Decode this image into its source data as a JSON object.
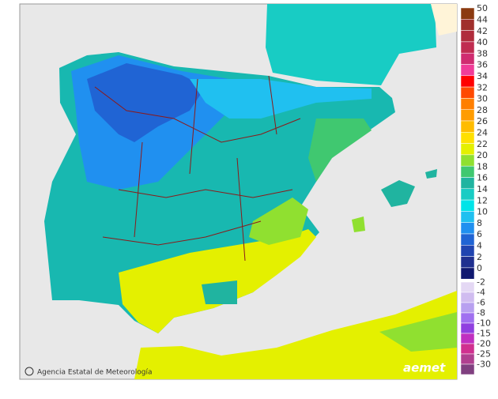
{
  "footer": {
    "credit": "Agencia Estatal de Meteorología",
    "logo": "aemet"
  },
  "legend": {
    "positive": [
      {
        "value": 50,
        "color": "#8b3a10"
      },
      {
        "value": 44,
        "color": "#a0302c"
      },
      {
        "value": 42,
        "color": "#b02c3c"
      },
      {
        "value": 40,
        "color": "#c02c50"
      },
      {
        "value": 38,
        "color": "#d02c70"
      },
      {
        "value": 36,
        "color": "#f03c98"
      },
      {
        "value": 34,
        "color": "#ff0000"
      },
      {
        "value": 32,
        "color": "#ff4a00"
      },
      {
        "value": 30,
        "color": "#ff7f00"
      },
      {
        "value": 28,
        "color": "#ff9c00"
      },
      {
        "value": 26,
        "color": "#ffbc00"
      },
      {
        "value": 24,
        "color": "#ffe000"
      },
      {
        "value": 22,
        "color": "#e4f000"
      },
      {
        "value": 20,
        "color": "#90e030"
      },
      {
        "value": 18,
        "color": "#40c870"
      },
      {
        "value": 16,
        "color": "#20b4a0"
      },
      {
        "value": 14,
        "color": "#18ccc4"
      },
      {
        "value": 12,
        "color": "#00e4e8"
      },
      {
        "value": 10,
        "color": "#20c0f0"
      },
      {
        "value": 8,
        "color": "#2090f0"
      },
      {
        "value": 6,
        "color": "#2064d4"
      },
      {
        "value": 4,
        "color": "#2044b0"
      },
      {
        "value": 2,
        "color": "#203090"
      },
      {
        "value": 0,
        "color": "#101870"
      }
    ],
    "negative": [
      {
        "value": -2,
        "color": "#e4d8f4"
      },
      {
        "value": -4,
        "color": "#d0bcf0"
      },
      {
        "value": -6,
        "color": "#b8a0f0"
      },
      {
        "value": -8,
        "color": "#a070f0"
      },
      {
        "value": -10,
        "color": "#9040e0"
      },
      {
        "value": -15,
        "color": "#c030c0"
      },
      {
        "value": -20,
        "color": "#d03090"
      },
      {
        "value": -25,
        "color": "#b04090"
      },
      {
        "value": -30,
        "color": "#804080"
      }
    ]
  }
}
